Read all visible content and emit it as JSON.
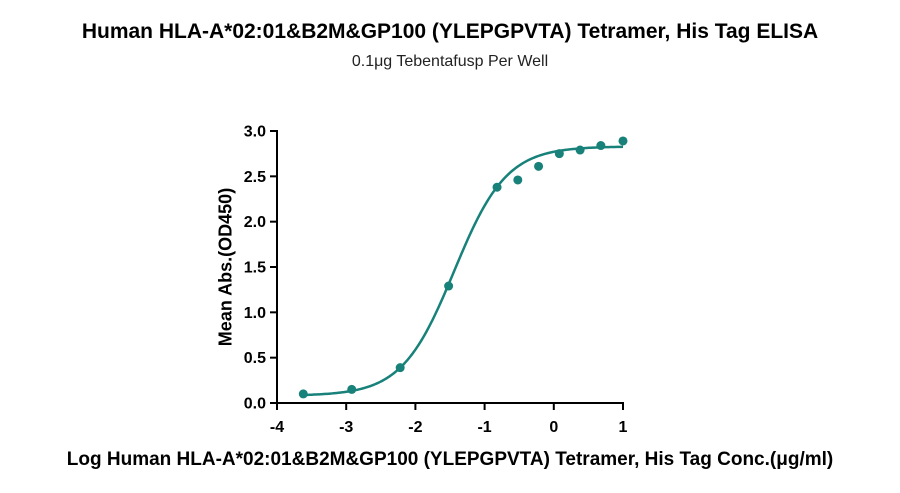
{
  "chart_data": {
    "type": "scatter",
    "title": "Human HLA-A*02:01&B2M&GP100 (YLEPGPVTA) Tetramer, His Tag ELISA",
    "subtitle": "0.1μg Tebentafusp Per Well",
    "xlabel": "Log Human HLA-A*02:01&B2M&GP100 (YLEPGPVTA) Tetramer, His Tag Conc.(μg/ml)",
    "ylabel": "Mean Abs.(OD450)",
    "xlim": [
      -4,
      1
    ],
    "ylim": [
      0,
      3.0
    ],
    "x_ticks": [
      "-4",
      "-3",
      "-2",
      "-1",
      "0",
      "1"
    ],
    "y_ticks": [
      "0.0",
      "0.5",
      "1.0",
      "1.5",
      "2.0",
      "2.5",
      "3.0"
    ],
    "grid": false,
    "series": [
      {
        "color": "#17817a",
        "points": [
          {
            "x": -3.62,
            "y": 0.1
          },
          {
            "x": -2.92,
            "y": 0.15
          },
          {
            "x": -2.22,
            "y": 0.39
          },
          {
            "x": -1.52,
            "y": 1.29
          },
          {
            "x": -0.82,
            "y": 2.38
          },
          {
            "x": -0.52,
            "y": 2.46
          },
          {
            "x": -0.22,
            "y": 2.61
          },
          {
            "x": 0.08,
            "y": 2.75
          },
          {
            "x": 0.38,
            "y": 2.79
          },
          {
            "x": 0.68,
            "y": 2.84
          },
          {
            "x": 1.0,
            "y": 2.89
          }
        ],
        "fit": {
          "bottom": 0.08,
          "top": 2.83,
          "logEC50": -1.44,
          "hill": 1.15
        }
      }
    ]
  }
}
